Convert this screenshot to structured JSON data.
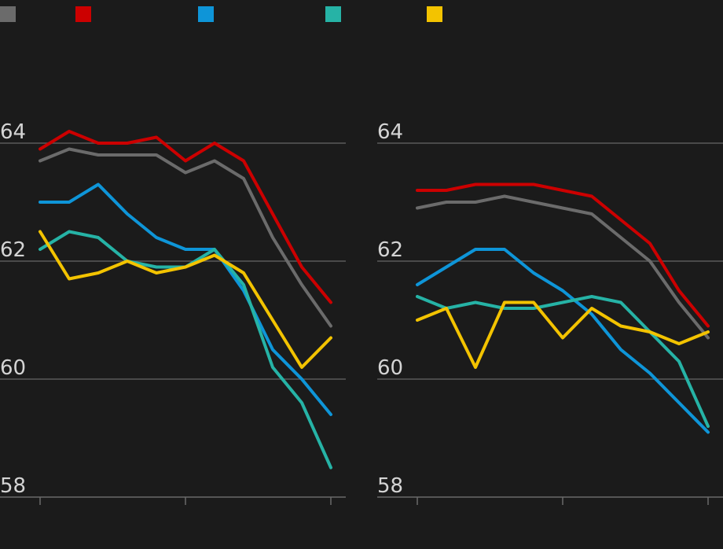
{
  "chart_data": [
    {
      "type": "line",
      "ylim": [
        58,
        64
      ],
      "yticks": [
        58,
        60,
        62,
        64
      ],
      "xlim": [
        0,
        10
      ],
      "grid": true,
      "legend": "top-left",
      "series": [
        {
          "color": "#6b6b6b",
          "values": [
            63.7,
            63.9,
            63.8,
            63.8,
            63.8,
            63.5,
            63.7,
            63.4,
            62.4,
            61.6,
            60.9
          ]
        },
        {
          "color": "#cc0000",
          "values": [
            63.9,
            64.2,
            64.0,
            64.0,
            64.1,
            63.7,
            64.0,
            63.7,
            62.8,
            61.9,
            61.3
          ]
        },
        {
          "color": "#0e95d8",
          "values": [
            63.0,
            63.0,
            63.3,
            62.8,
            62.4,
            62.2,
            62.2,
            61.5,
            60.5,
            60.0,
            59.4
          ]
        },
        {
          "color": "#26b3a6",
          "values": [
            62.2,
            62.5,
            62.4,
            62.0,
            61.9,
            61.9,
            62.2,
            61.6,
            60.2,
            59.6,
            58.5
          ]
        },
        {
          "color": "#f3c300",
          "values": [
            62.5,
            61.7,
            61.8,
            62.0,
            61.8,
            61.9,
            62.1,
            61.8,
            61.0,
            60.2,
            60.7
          ]
        }
      ]
    },
    {
      "type": "line",
      "ylim": [
        58,
        64
      ],
      "yticks": [
        58,
        60,
        62,
        64
      ],
      "xlim": [
        0,
        10
      ],
      "grid": true,
      "series": [
        {
          "color": "#6b6b6b",
          "values": [
            62.9,
            63.0,
            63.0,
            63.1,
            63.0,
            62.9,
            62.8,
            62.4,
            62.0,
            61.3,
            60.7
          ]
        },
        {
          "color": "#cc0000",
          "values": [
            63.2,
            63.2,
            63.3,
            63.3,
            63.3,
            63.2,
            63.1,
            62.7,
            62.3,
            61.5,
            60.9
          ]
        },
        {
          "color": "#0e95d8",
          "values": [
            61.6,
            61.9,
            62.2,
            62.2,
            61.8,
            61.5,
            61.1,
            60.5,
            60.1,
            59.6,
            59.1
          ]
        },
        {
          "color": "#26b3a6",
          "values": [
            61.4,
            61.2,
            61.3,
            61.2,
            61.2,
            61.3,
            61.4,
            61.3,
            60.8,
            60.3,
            59.2
          ]
        },
        {
          "color": "#f3c300",
          "values": [
            61.0,
            61.2,
            60.2,
            61.3,
            61.3,
            60.7,
            61.2,
            60.9,
            60.8,
            60.6,
            60.8
          ]
        }
      ]
    }
  ]
}
